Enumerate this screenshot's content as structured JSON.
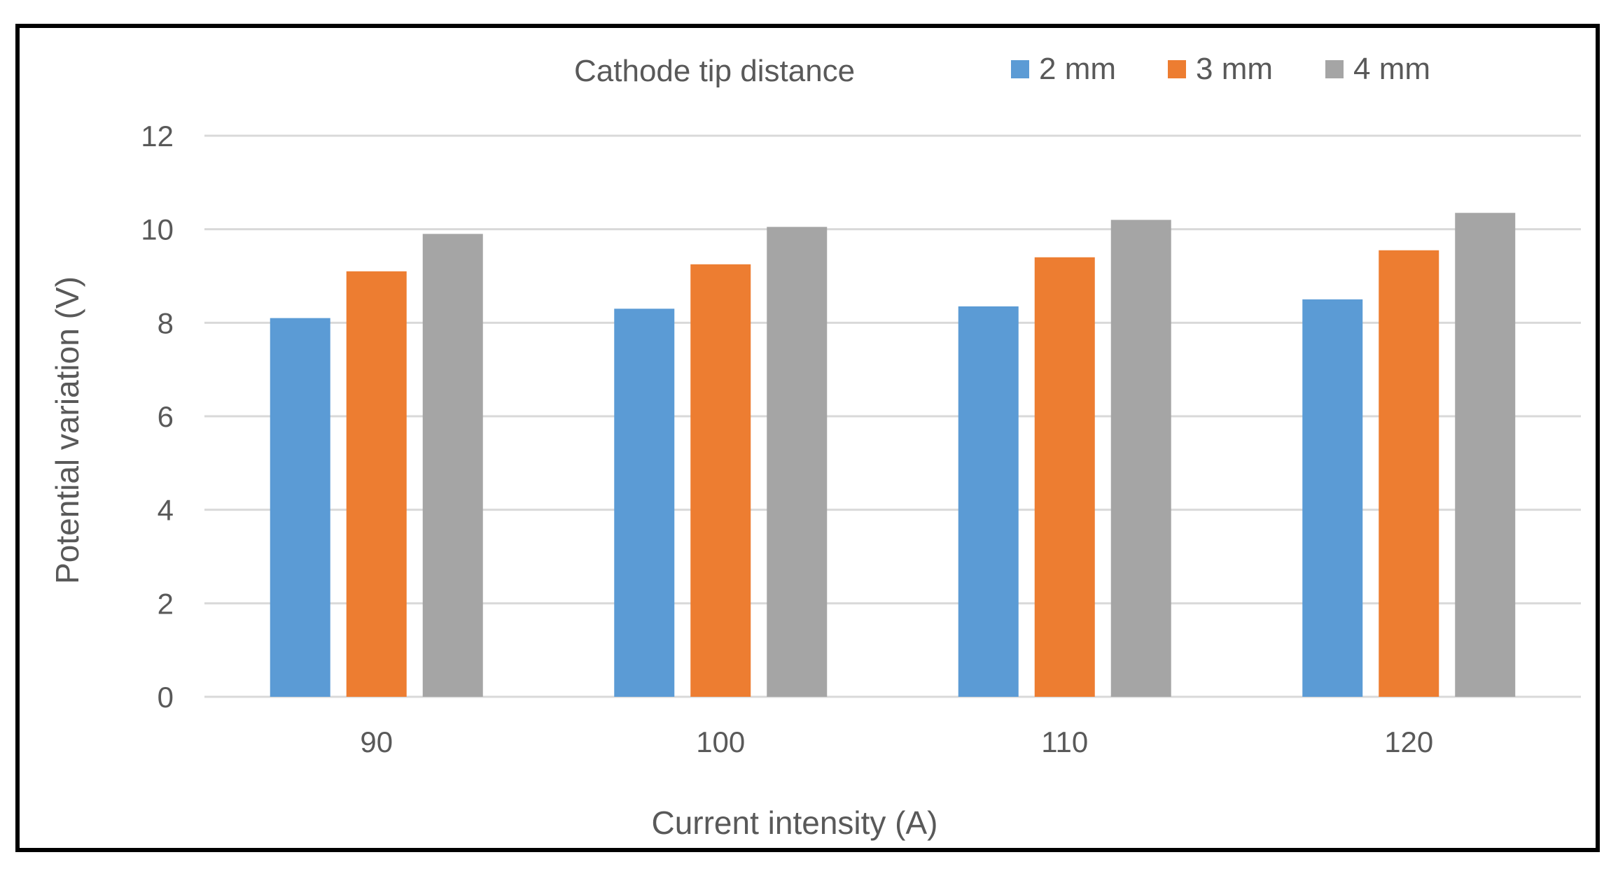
{
  "chart_data": {
    "type": "bar",
    "categories": [
      "90",
      "100",
      "110",
      "120"
    ],
    "series": [
      {
        "name": "2 mm",
        "values": [
          8.1,
          8.3,
          8.35,
          8.5
        ],
        "color": "#5B9BD5"
      },
      {
        "name": "3 mm",
        "values": [
          9.1,
          9.25,
          9.4,
          9.55
        ],
        "color": "#ED7D31"
      },
      {
        "name": "4 mm",
        "values": [
          9.9,
          10.05,
          10.2,
          10.35
        ],
        "color": "#A5A5A5"
      }
    ],
    "legend_title": "Cathode tip distance",
    "legend_position": "top-right",
    "xlabel": "Current intensity (A)",
    "ylabel": "Potential variation (V)",
    "ylim": [
      0,
      12
    ],
    "yticks": [
      0,
      2,
      4,
      6,
      8,
      10,
      12
    ],
    "grid": true,
    "gridline_color": "#D9D9D9"
  }
}
